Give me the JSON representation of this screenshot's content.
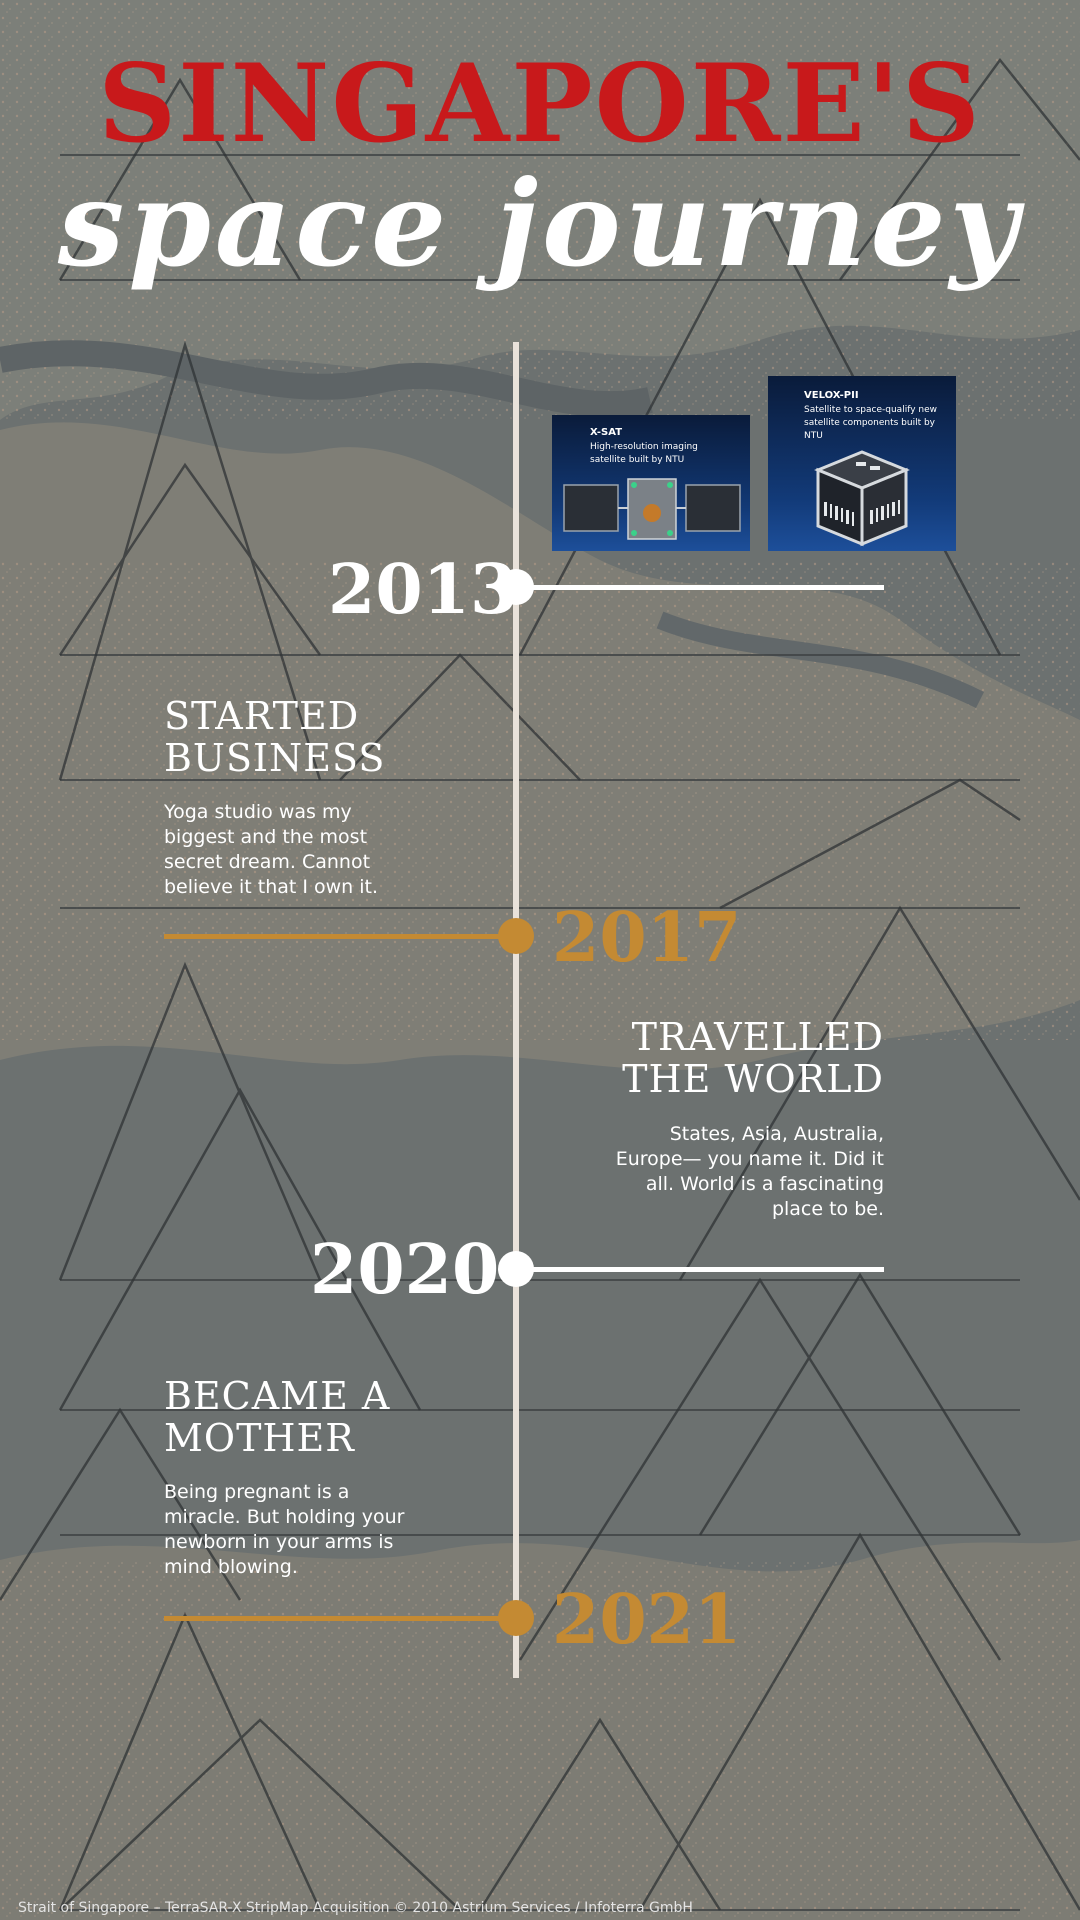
{
  "title": {
    "main": "SINGAPORE'S",
    "script": "space journey"
  },
  "cards": [
    {
      "name": "X-SAT",
      "desc": "High-resolution imaging satellite built by NTU"
    },
    {
      "name": "VELOX-PII",
      "desc": "Satellite to space-qualify new satellite components built by NTU"
    }
  ],
  "timeline": [
    {
      "year": "2013",
      "color": "white"
    },
    {
      "year": "2017",
      "color": "gold",
      "event_title": "STARTED BUSINESS",
      "event_desc": "Yoga studio was my biggest and the most secret dream. Cannot believe it that I own it."
    },
    {
      "year": "2020",
      "color": "white",
      "event_title": "TRAVELLED THE WORLD",
      "event_desc": "States, Asia, Australia, Europe— you name it. Did it all. World is a fascinating place to be."
    },
    {
      "year": "2021",
      "color": "gold",
      "event_title": "BECAME A MOTHER",
      "event_desc": "Being pregnant is a miracle. But holding your newborn in your arms is mind blowing."
    }
  ],
  "credit": "Strait of Singapore – TerraSAR-X StripMap Acquisition © 2010 Astrium Services / Infoterra GmbH",
  "colors": {
    "title_red": "#c8191b",
    "gold": "#c48a33",
    "white": "#ffffff",
    "map_gray": "#6f7474"
  }
}
